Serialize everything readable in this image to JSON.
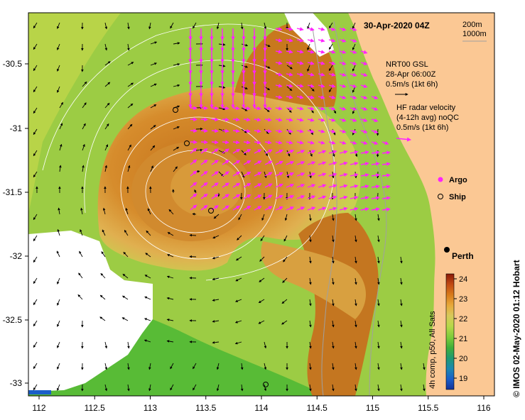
{
  "title": "30-Apr-2020 04Z",
  "depth_legend": [
    "200m",
    "1000m"
  ],
  "model_label": {
    "line1": "NRT00 GSL",
    "line2": "28-Apr 06:00Z",
    "line3": "0.5m/s (1kt 6h)"
  },
  "radar_label": {
    "line1": "HF radar velocity",
    "line2": "(4-12h avg) noQC",
    "line3": "0.5m/s (1kt 6h)"
  },
  "legend": {
    "argo": "Argo",
    "ship": "Ship"
  },
  "city": "Perth",
  "colorbar": {
    "label": "4h comp, p50, All Sats",
    "ticks": [
      "24",
      "23",
      "22",
      "21",
      "20",
      "19"
    ],
    "colors": [
      "#8a1a08",
      "#c24a12",
      "#d87a1a",
      "#e8a83a",
      "#d8c85a",
      "#b8d84a",
      "#7ccc3a",
      "#3fae3a",
      "#1f9a72",
      "#1c88b0",
      "#1a5ec8",
      "#14329a"
    ]
  },
  "credit": "© IMOS 02-May-2020 01:12 Hobart",
  "axes": {
    "x_ticks": [
      "112",
      "112.5",
      "113",
      "113.5",
      "114",
      "114.5",
      "115",
      "115.5",
      "116"
    ],
    "y_ticks": [
      "-30.5",
      "-31",
      "-31.5",
      "-32",
      "-32.5",
      "-33"
    ]
  },
  "colors": {
    "land": "#fbc894",
    "ocean_warm": "#d68a2c",
    "ocean_core": "#c6741e",
    "ocean_mid": "#e8c86a",
    "ocean_cool": "#a6d24a",
    "ocean_green": "#5cc03a",
    "radar_arrow": "#ff22ff"
  }
}
